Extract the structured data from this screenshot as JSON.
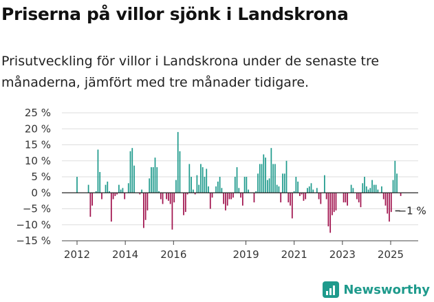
{
  "header": {
    "title": "Priserna på villor sjönk i Landskrona",
    "subtitle": "Prisutveckling för villor i Landskrona under de senaste tre månaderna, jämfört med tre månader tidigare."
  },
  "brand": {
    "name": "Newsworthy"
  },
  "colors": {
    "positive": "#1e9a8c",
    "negative": "#a0124d",
    "axis": "#333333",
    "grid": "#dddddd"
  },
  "chart_data": {
    "type": "bar",
    "title": "Priserna på villor sjönk i Landskrona",
    "subtitle": "Prisutveckling för villor i Landskrona under de senaste tre månaderna, jämfört med tre månader tidigare.",
    "xlabel": "",
    "ylabel": "",
    "x_unit": "months",
    "x_start": "2012-01",
    "x_end": "2025-06",
    "ylim": [
      -15,
      25
    ],
    "yticks": [
      25,
      20,
      15,
      10,
      5,
      0,
      -5,
      -10,
      -15
    ],
    "ytick_labels": [
      "25 %",
      "20 %",
      "15 %",
      "10 %",
      "5 %",
      "0 %",
      "−5 %",
      "−10 %",
      "−15 %"
    ],
    "xtick_labels": [
      "2012",
      "2014",
      "2016",
      "2019",
      "2021",
      "2023",
      "2025"
    ],
    "xtick_dates": [
      "2012-01",
      "2014-01",
      "2016-01",
      "2019-01",
      "2021-01",
      "2023-01",
      "2025-01"
    ],
    "grid": true,
    "legend": "none",
    "annotation": {
      "text": "−1 %",
      "date": "2025-06",
      "value": -1
    },
    "series": [
      {
        "values": [
          5,
          0,
          0,
          0,
          0,
          0,
          2.5,
          -7.5,
          -4,
          0,
          0.5,
          13.5,
          6.5,
          -2,
          0,
          2.5,
          3.5,
          0.5,
          -9,
          -2,
          -1,
          -0.5,
          2.5,
          1,
          1.5,
          -2,
          0,
          3,
          13,
          14,
          8.5,
          0,
          0,
          -0.5,
          1,
          -11,
          -8.5,
          -5.5,
          4.5,
          8,
          8,
          11,
          8,
          0.5,
          -2,
          -3.5,
          0,
          -2,
          -2.5,
          -3.5,
          -11.5,
          -3,
          4,
          19,
          13,
          0,
          -7,
          -6,
          -0.5,
          9,
          5,
          1,
          -0.5,
          5.5,
          2.5,
          9,
          8,
          5,
          7.5,
          2,
          -5,
          -1.5,
          0,
          2,
          3.5,
          5,
          1.5,
          -3.5,
          -5.5,
          -4,
          -2,
          -2,
          -1.5,
          5,
          8,
          1.5,
          -1.5,
          -4,
          5,
          5,
          1,
          0,
          0,
          -3,
          0.5,
          6,
          9,
          9,
          12,
          11,
          4,
          4.5,
          14,
          9,
          9,
          2.5,
          2,
          -3,
          6,
          6,
          10,
          -3,
          -4,
          -8,
          0.5,
          5,
          3.5,
          -1,
          -0.5,
          -2.5,
          -2,
          1.5,
          2,
          3,
          1,
          0,
          1.5,
          -2,
          -3.5,
          0,
          5.5,
          -2,
          -10.5,
          -12.5,
          -7,
          -6,
          -5.5,
          0,
          0,
          0,
          -3,
          -3,
          -4,
          0,
          2.5,
          1.5,
          0,
          -2,
          -3,
          -4.5,
          3,
          5,
          2,
          1,
          1.5,
          4,
          2.5,
          2.5,
          1,
          0,
          2,
          -2,
          -4,
          -6.5,
          -9,
          -6,
          4,
          10,
          6,
          0,
          -1
        ]
      }
    ]
  }
}
